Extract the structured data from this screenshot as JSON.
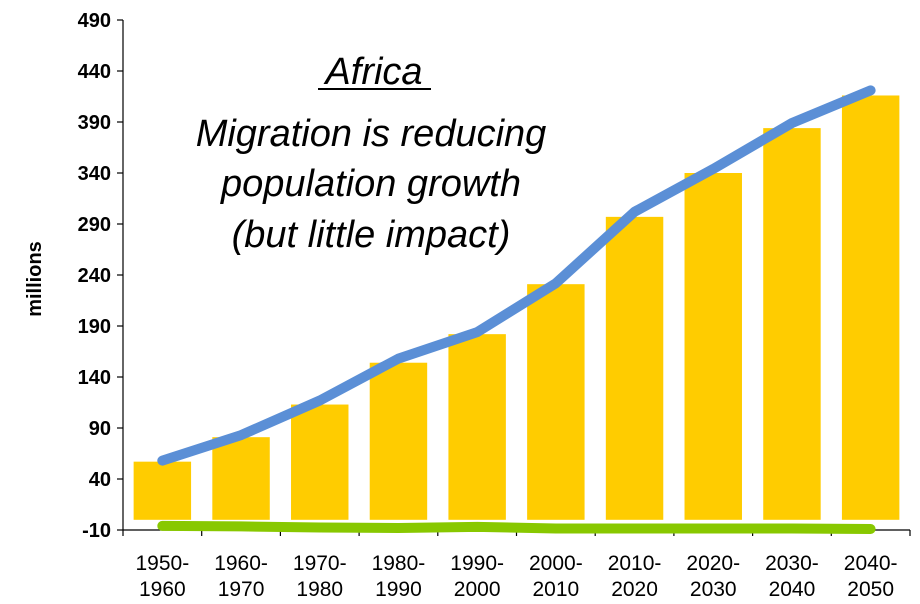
{
  "chart_data": {
    "type": "bar",
    "title": "Africa",
    "subtitle_lines": [
      "Migration is reducing",
      "population growth",
      "(but little impact)"
    ],
    "ylabel": "millions",
    "xlabel": "",
    "ylim": [
      -10,
      490
    ],
    "yticks": [
      "-10",
      "40",
      "90",
      "140",
      "190",
      "240",
      "290",
      "340",
      "390",
      "440",
      "490"
    ],
    "categories": [
      [
        "1950-",
        "1960"
      ],
      [
        "1960-",
        "1970"
      ],
      [
        "1970-",
        "1980"
      ],
      [
        "1980-",
        "1990"
      ],
      [
        "1990-",
        "2000"
      ],
      [
        "2000-",
        "2010"
      ],
      [
        "2010-",
        "2020"
      ],
      [
        "2020-",
        "2030"
      ],
      [
        "2030-",
        "2040"
      ],
      [
        "2040-",
        "2050"
      ]
    ],
    "series": [
      {
        "type": "bar",
        "color": "#FFCC00",
        "values": [
          57,
          81,
          113,
          154,
          182,
          231,
          297,
          340,
          384,
          416
        ]
      },
      {
        "type": "line",
        "color": "#5B8FD6",
        "values": [
          58,
          83,
          117,
          158,
          184,
          232,
          302,
          344,
          389,
          421
        ]
      },
      {
        "type": "line",
        "color": "#88C800",
        "values": [
          -6,
          -6.5,
          -7.5,
          -8,
          -7,
          -8.5,
          -8.5,
          -8.5,
          -8.5,
          -9
        ]
      }
    ],
    "grid": false,
    "legend": "none"
  }
}
